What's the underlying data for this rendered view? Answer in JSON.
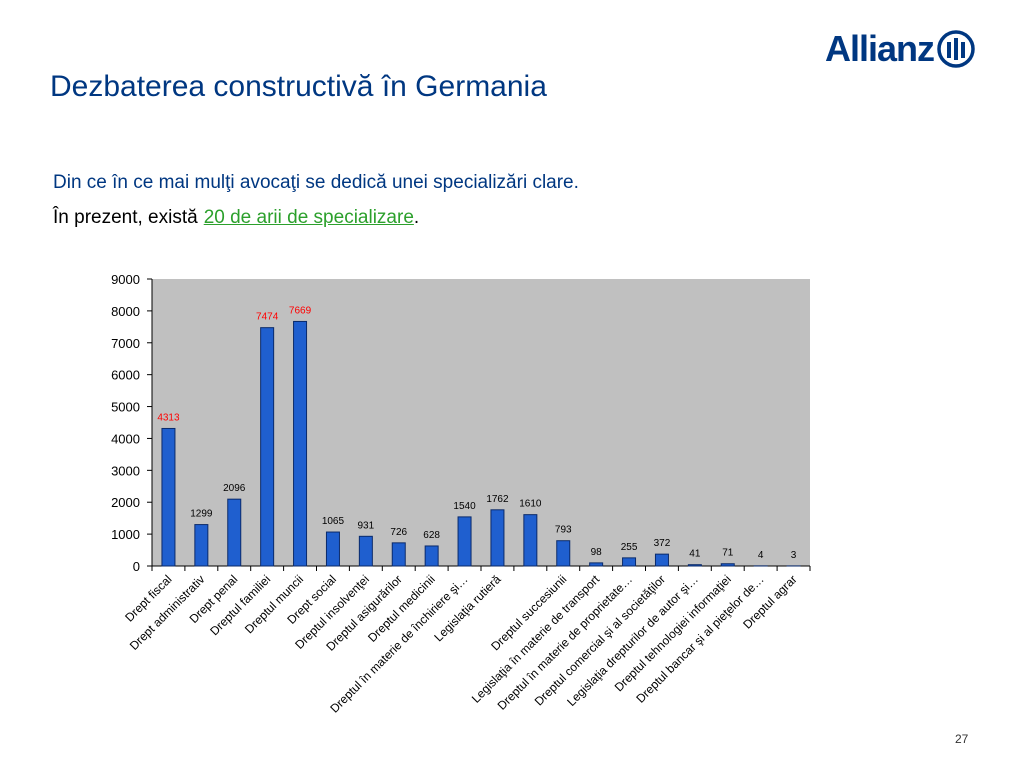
{
  "header": {
    "logo": "Allianz",
    "title": "Dezbaterea constructivă în Germania"
  },
  "body": {
    "line1": "Din ce în ce mai mulţi avocaţi se dedică unei specializări clare.",
    "line2_prefix": "În prezent, există",
    "line2_link": "20 de arii de specializare",
    "line2_suffix": "."
  },
  "chart_data": {
    "type": "bar",
    "categories": [
      "Drept fiscal",
      "Drept administrativ",
      "Drept penal",
      "Dreptul familiei",
      "Dreptul muncii",
      "Drept social",
      "Dreptul insolvenţei",
      "Dreptul asigurărilor",
      "Dreptul medicinii",
      "Dreptul în materie de închiriere şi…",
      "Legislaţia rutieră",
      null,
      "Dreptul succesiunii",
      "Legislaţia în materie de transport",
      "Dreptul în materie de proprietate…",
      "Dreptul comercial şi al societăţilor",
      "Legislaţia drepturilor de autor şi…",
      "Dreptul tehnologiei informaţiei",
      "Dreptul bancar şi al pieţelor de…",
      "Dreptul agrar"
    ],
    "values": [
      4313,
      1299,
      2096,
      7474,
      7669,
      1065,
      931,
      726,
      628,
      1540,
      1762,
      1610,
      793,
      98,
      255,
      372,
      41,
      71,
      4,
      3
    ],
    "value_label_colors": [
      "#ff0000",
      "#000000",
      "#000000",
      "#ff0000",
      "#ff0000",
      "#000000",
      "#000000",
      "#000000",
      "#000000",
      "#000000",
      "#000000",
      "#000000",
      "#000000",
      "#000000",
      "#000000",
      "#000000",
      "#000000",
      "#000000",
      "#000000",
      "#000000"
    ],
    "color": "#1f5fcf",
    "plot_background": "#c0c0c0",
    "ylim": [
      0,
      9000
    ],
    "yticks": [
      0,
      1000,
      2000,
      3000,
      4000,
      5000,
      6000,
      7000,
      8000,
      9000
    ]
  },
  "footer": {
    "page": "27"
  }
}
